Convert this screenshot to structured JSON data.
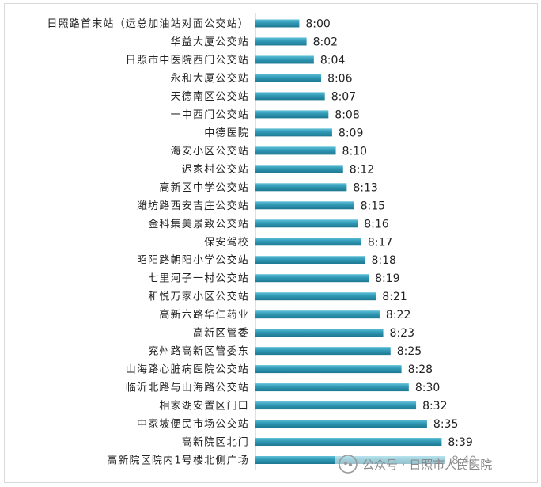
{
  "chart_data": {
    "type": "bar",
    "orientation": "horizontal",
    "categories": [
      "日照路首末站（运总加油站对面公交站）",
      "华益大厦公交站",
      "日照市中医院西门公交站",
      "永和大厦公交站",
      "天德南区公交站",
      "一中西门公交站",
      "中德医院",
      "海安小区公交站",
      "迟家村公交站",
      "高新区中学公交站",
      "潍坊路西安吉庄公交站",
      "金科集美景致公交站",
      "保安驾校",
      "昭阳路朝阳小学公交站",
      "七里河子一村公交站",
      "和悦万家小区公交站",
      "高新六路华仁药业",
      "高新区管委",
      "兖州路高新区管委东",
      "山海路心脏病医院公交站",
      "临沂北路与山海路公交站",
      "相家湖安置区门口",
      "中家坡便民市场公交站",
      "高新院区北门",
      "高新院区院内1号楼北侧广场"
    ],
    "values": [
      "8:00",
      "8:02",
      "8:04",
      "8:06",
      "8:07",
      "8:08",
      "8:09",
      "8:10",
      "8:12",
      "8:13",
      "8:15",
      "8:16",
      "8:17",
      "8:18",
      "8:19",
      "8:21",
      "8:22",
      "8:23",
      "8:25",
      "8:28",
      "8:30",
      "8:32",
      "8:35",
      "8:39",
      "8:40"
    ],
    "bar_color": "#2f98b4",
    "title": "",
    "xlabel": "",
    "ylabel": "",
    "grid": false,
    "legend": "none"
  },
  "watermark": {
    "icon": "wechat-official-account-icon",
    "text": "公众号 · 日照市人民医院"
  }
}
